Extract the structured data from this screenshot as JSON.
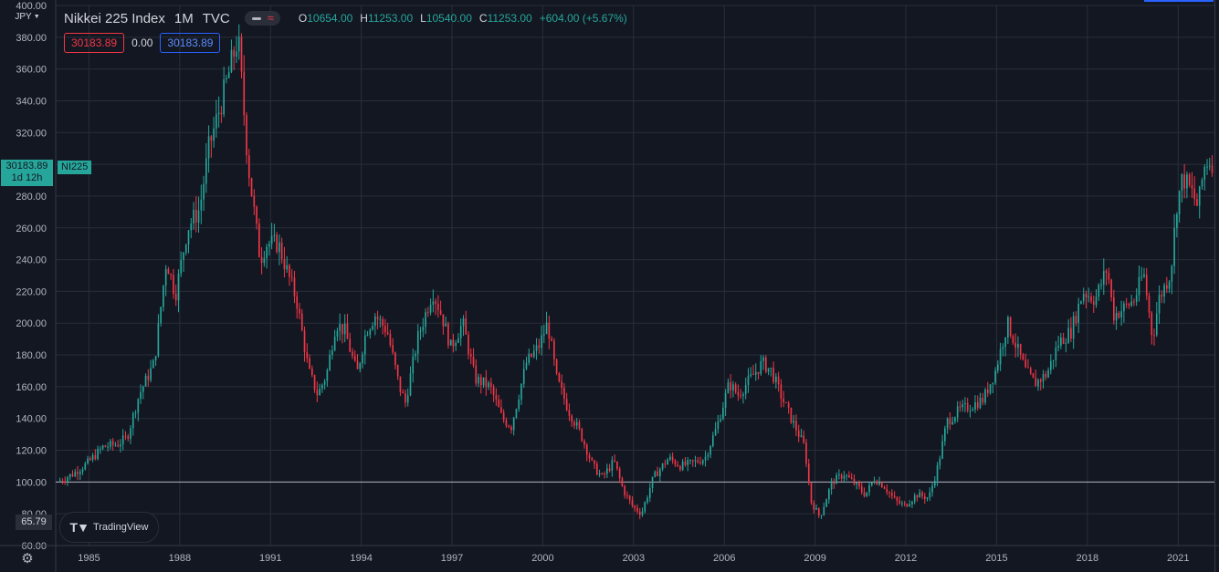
{
  "legend": {
    "symbol": "Nikkei 225 Index",
    "resolution": "1M",
    "exchange": "TVC",
    "open_key": "O",
    "open": "10654.00",
    "high_key": "H",
    "high": "11253.00",
    "low_key": "L",
    "low": "10540.00",
    "close_key": "C",
    "close": "11253.00",
    "change": "+604.00 (+5.67%)"
  },
  "indicator_values": {
    "left": "30183.89",
    "middle": "0.00",
    "right": "30183.89"
  },
  "currency": "JPY",
  "price_tag": {
    "price": "30183.89",
    "countdown": "1d 12h",
    "symbol": "NI225"
  },
  "low_label": "65.79",
  "watermark": "TradingView",
  "colors": {
    "up": "#26a69a",
    "down": "#f23645",
    "background": "#131722",
    "grid": "#2a2e39"
  },
  "icons": {
    "settings": "gear-icon",
    "logo": "tradingview-logo-icon"
  },
  "chart_data": {
    "type": "candlestick",
    "title": "Nikkei 225 Index",
    "x_tick_labels": [
      "1985",
      "1988",
      "1991",
      "1994",
      "1997",
      "2000",
      "2003",
      "2006",
      "2009",
      "2012",
      "2015",
      "2018",
      "2021"
    ],
    "y_tick_labels": [
      "400.00",
      "380.00",
      "360.00",
      "340.00",
      "320.00",
      "300.00",
      "280.00",
      "260.00",
      "240.00",
      "220.00",
      "200.00",
      "180.00",
      "160.00",
      "140.00",
      "120.00",
      "100.00",
      "80.00",
      "60.00"
    ],
    "y_range": [
      60,
      400
    ],
    "x_range": [
      1983.9,
      2022.2
    ],
    "reference_line": 100,
    "grid": true,
    "series_points": [
      [
        1984.0,
        100
      ],
      [
        1984.5,
        105
      ],
      [
        1985.0,
        112
      ],
      [
        1985.5,
        122
      ],
      [
        1986.0,
        124
      ],
      [
        1986.3,
        128
      ],
      [
        1986.7,
        155
      ],
      [
        1987.2,
        175
      ],
      [
        1987.6,
        240
      ],
      [
        1987.9,
        218
      ],
      [
        1988.3,
        260
      ],
      [
        1988.7,
        272
      ],
      [
        1989.0,
        310
      ],
      [
        1989.5,
        345
      ],
      [
        1989.97,
        380
      ],
      [
        1990.3,
        300
      ],
      [
        1990.7,
        240
      ],
      [
        1990.9,
        250
      ],
      [
        1991.3,
        250
      ],
      [
        1991.6,
        232
      ],
      [
        1991.9,
        215
      ],
      [
        1992.3,
        170
      ],
      [
        1992.6,
        155
      ],
      [
        1992.9,
        168
      ],
      [
        1993.2,
        200
      ],
      [
        1993.5,
        195
      ],
      [
        1993.9,
        168
      ],
      [
        1994.2,
        195
      ],
      [
        1994.5,
        205
      ],
      [
        1994.9,
        195
      ],
      [
        1995.3,
        160
      ],
      [
        1995.5,
        150
      ],
      [
        1995.9,
        190
      ],
      [
        1996.4,
        220
      ],
      [
        1996.7,
        205
      ],
      [
        1997.0,
        185
      ],
      [
        1997.4,
        200
      ],
      [
        1997.8,
        165
      ],
      [
        1998.3,
        160
      ],
      [
        1998.7,
        140
      ],
      [
        1999.0,
        135
      ],
      [
        1999.5,
        175
      ],
      [
        1999.9,
        185
      ],
      [
        2000.2,
        200
      ],
      [
        2000.5,
        165
      ],
      [
        2000.9,
        145
      ],
      [
        2001.3,
        130
      ],
      [
        2001.7,
        110
      ],
      [
        2002.0,
        103
      ],
      [
        2002.4,
        113
      ],
      [
        2002.7,
        95
      ],
      [
        2003.0,
        85
      ],
      [
        2003.3,
        80
      ],
      [
        2003.7,
        103
      ],
      [
        2004.2,
        115
      ],
      [
        2004.6,
        110
      ],
      [
        2005.0,
        112
      ],
      [
        2005.4,
        115
      ],
      [
        2005.8,
        135
      ],
      [
        2006.2,
        162
      ],
      [
        2006.5,
        155
      ],
      [
        2006.9,
        165
      ],
      [
        2007.3,
        175
      ],
      [
        2007.6,
        170
      ],
      [
        2007.9,
        155
      ],
      [
        2008.3,
        138
      ],
      [
        2008.7,
        122
      ],
      [
        2008.9,
        88
      ],
      [
        2009.2,
        78
      ],
      [
        2009.6,
        100
      ],
      [
        2010.0,
        105
      ],
      [
        2010.4,
        98
      ],
      [
        2010.7,
        92
      ],
      [
        2011.0,
        102
      ],
      [
        2011.3,
        98
      ],
      [
        2011.7,
        88
      ],
      [
        2012.0,
        85
      ],
      [
        2012.4,
        92
      ],
      [
        2012.8,
        90
      ],
      [
        2013.1,
        110
      ],
      [
        2013.4,
        138
      ],
      [
        2013.8,
        145
      ],
      [
        2014.2,
        148
      ],
      [
        2014.6,
        152
      ],
      [
        2015.0,
        170
      ],
      [
        2015.4,
        200
      ],
      [
        2015.7,
        185
      ],
      [
        2016.0,
        170
      ],
      [
        2016.3,
        162
      ],
      [
        2016.7,
        168
      ],
      [
        2017.1,
        188
      ],
      [
        2017.5,
        195
      ],
      [
        2017.9,
        220
      ],
      [
        2018.3,
        215
      ],
      [
        2018.7,
        235
      ],
      [
        2018.9,
        205
      ],
      [
        2019.3,
        210
      ],
      [
        2019.6,
        215
      ],
      [
        2019.9,
        232
      ],
      [
        2020.2,
        190
      ],
      [
        2020.4,
        215
      ],
      [
        2020.8,
        232
      ],
      [
        2021.0,
        275
      ],
      [
        2021.2,
        292
      ],
      [
        2021.5,
        282
      ],
      [
        2021.7,
        273
      ],
      [
        2021.9,
        298
      ],
      [
        2022.0,
        302
      ]
    ]
  }
}
